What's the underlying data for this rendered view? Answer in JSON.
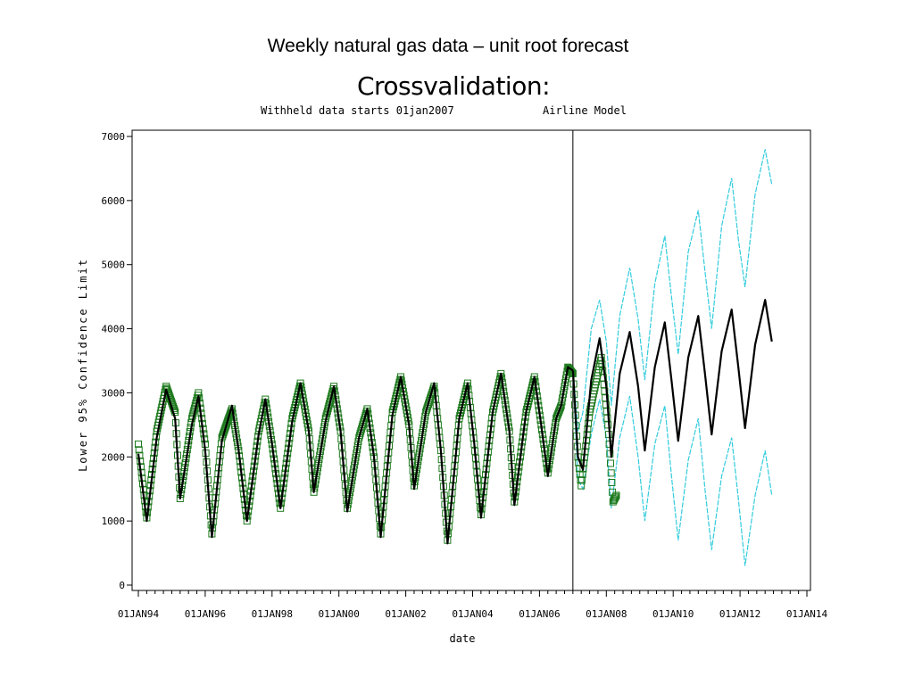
{
  "slide": {
    "title": "Weekly natural gas data – unit root forecast"
  },
  "chart_data": {
    "type": "line",
    "title": "Crossvalidation:",
    "subtitle_left": "Withheld data starts 01jan2007",
    "subtitle_right": "Airline Model",
    "xlabel": "date",
    "ylabel": "Lower 95% Confidence Limit",
    "xlim": [
      1994.0,
      2014.0
    ],
    "ylim": [
      0,
      7000
    ],
    "yticks": [
      0,
      1000,
      2000,
      3000,
      4000,
      5000,
      6000,
      7000
    ],
    "xticks": [
      {
        "value": 1994,
        "label": "01JAN94"
      },
      {
        "value": 1996,
        "label": "01JAN96"
      },
      {
        "value": 1998,
        "label": "01JAN98"
      },
      {
        "value": 2000,
        "label": "01JAN00"
      },
      {
        "value": 2002,
        "label": "01JAN02"
      },
      {
        "value": 2004,
        "label": "01JAN04"
      },
      {
        "value": 2006,
        "label": "01JAN06"
      },
      {
        "value": 2008,
        "label": "01JAN08"
      },
      {
        "value": 2010,
        "label": "01JAN10"
      },
      {
        "value": 2012,
        "label": "01JAN12"
      },
      {
        "value": 2014,
        "label": "01JAN14"
      }
    ],
    "reference_line_x": 2007.0,
    "colors": {
      "actual": "#1e7a1e",
      "fitted": "#000000",
      "forecast": "#000000",
      "confidence": "#33ccdd"
    },
    "series": [
      {
        "key": "actual",
        "style": "open-square-markers",
        "points": [
          [
            1994.0,
            2200
          ],
          [
            1994.25,
            1050
          ],
          [
            1994.55,
            2400
          ],
          [
            1994.83,
            3100
          ],
          [
            1995.1,
            2700
          ],
          [
            1995.25,
            1350
          ],
          [
            1995.6,
            2600
          ],
          [
            1995.8,
            3000
          ],
          [
            1996.0,
            2200
          ],
          [
            1996.2,
            800
          ],
          [
            1996.5,
            2300
          ],
          [
            1996.8,
            2750
          ],
          [
            1997.0,
            2100
          ],
          [
            1997.25,
            1000
          ],
          [
            1997.6,
            2400
          ],
          [
            1997.8,
            2900
          ],
          [
            1998.0,
            2200
          ],
          [
            1998.25,
            1200
          ],
          [
            1998.6,
            2600
          ],
          [
            1998.85,
            3150
          ],
          [
            1999.1,
            2400
          ],
          [
            1999.25,
            1450
          ],
          [
            1999.6,
            2600
          ],
          [
            1999.85,
            3100
          ],
          [
            2000.05,
            2400
          ],
          [
            2000.25,
            1200
          ],
          [
            2000.6,
            2300
          ],
          [
            2000.85,
            2750
          ],
          [
            2001.05,
            2000
          ],
          [
            2001.25,
            800
          ],
          [
            2001.6,
            2700
          ],
          [
            2001.85,
            3250
          ],
          [
            2002.1,
            2500
          ],
          [
            2002.25,
            1550
          ],
          [
            2002.6,
            2700
          ],
          [
            2002.85,
            3100
          ],
          [
            2003.05,
            2100
          ],
          [
            2003.25,
            700
          ],
          [
            2003.6,
            2600
          ],
          [
            2003.85,
            3150
          ],
          [
            2004.05,
            2200
          ],
          [
            2004.25,
            1100
          ],
          [
            2004.6,
            2700
          ],
          [
            2004.85,
            3300
          ],
          [
            2005.1,
            2400
          ],
          [
            2005.25,
            1300
          ],
          [
            2005.6,
            2700
          ],
          [
            2005.85,
            3250
          ],
          [
            2006.05,
            2500
          ],
          [
            2006.25,
            1750
          ],
          [
            2006.5,
            2600
          ],
          [
            2006.65,
            2800
          ],
          [
            2006.85,
            3400
          ],
          [
            2007.0,
            3300
          ],
          [
            2007.15,
            2000
          ],
          [
            2007.25,
            1550
          ],
          [
            2007.5,
            2700
          ],
          [
            2007.85,
            3550
          ],
          [
            2008.05,
            2500
          ],
          [
            2008.2,
            1300
          ],
          [
            2008.3,
            1400
          ]
        ]
      },
      {
        "key": "fitted",
        "style": "solid-line",
        "points": [
          [
            1994.0,
            2050
          ],
          [
            1994.25,
            1000
          ],
          [
            1994.55,
            2300
          ],
          [
            1994.83,
            3050
          ],
          [
            1995.1,
            2600
          ],
          [
            1995.25,
            1350
          ],
          [
            1995.6,
            2500
          ],
          [
            1995.8,
            2950
          ],
          [
            1996.0,
            2100
          ],
          [
            1996.2,
            750
          ],
          [
            1996.5,
            2250
          ],
          [
            1996.8,
            2800
          ],
          [
            1997.0,
            2100
          ],
          [
            1997.25,
            1000
          ],
          [
            1997.6,
            2350
          ],
          [
            1997.8,
            2900
          ],
          [
            1998.0,
            2200
          ],
          [
            1998.25,
            1200
          ],
          [
            1998.6,
            2550
          ],
          [
            1998.85,
            3150
          ],
          [
            1999.1,
            2400
          ],
          [
            1999.25,
            1450
          ],
          [
            1999.6,
            2550
          ],
          [
            1999.85,
            3100
          ],
          [
            2000.05,
            2400
          ],
          [
            2000.25,
            1150
          ],
          [
            2000.6,
            2300
          ],
          [
            2000.85,
            2750
          ],
          [
            2001.05,
            2000
          ],
          [
            2001.25,
            750
          ],
          [
            2001.6,
            2650
          ],
          [
            2001.85,
            3250
          ],
          [
            2002.1,
            2500
          ],
          [
            2002.25,
            1500
          ],
          [
            2002.6,
            2700
          ],
          [
            2002.85,
            3150
          ],
          [
            2003.05,
            2100
          ],
          [
            2003.25,
            650
          ],
          [
            2003.6,
            2600
          ],
          [
            2003.85,
            3150
          ],
          [
            2004.05,
            2200
          ],
          [
            2004.25,
            1050
          ],
          [
            2004.6,
            2700
          ],
          [
            2004.85,
            3300
          ],
          [
            2005.1,
            2400
          ],
          [
            2005.25,
            1250
          ],
          [
            2005.6,
            2700
          ],
          [
            2005.85,
            3250
          ],
          [
            2006.05,
            2500
          ],
          [
            2006.25,
            1700
          ],
          [
            2006.5,
            2600
          ],
          [
            2006.65,
            2800
          ],
          [
            2006.85,
            3400
          ],
          [
            2007.0,
            3350
          ]
        ]
      },
      {
        "key": "forecast",
        "style": "solid-line",
        "points": [
          [
            2007.0,
            3350
          ],
          [
            2007.15,
            2000
          ],
          [
            2007.3,
            1800
          ],
          [
            2007.55,
            3200
          ],
          [
            2007.8,
            3850
          ],
          [
            2008.0,
            3100
          ],
          [
            2008.15,
            2000
          ],
          [
            2008.4,
            3300
          ],
          [
            2008.7,
            3950
          ],
          [
            2008.95,
            3100
          ],
          [
            2009.15,
            2100
          ],
          [
            2009.45,
            3400
          ],
          [
            2009.75,
            4100
          ],
          [
            2009.95,
            3200
          ],
          [
            2010.15,
            2250
          ],
          [
            2010.45,
            3550
          ],
          [
            2010.75,
            4200
          ],
          [
            2010.95,
            3300
          ],
          [
            2011.15,
            2350
          ],
          [
            2011.45,
            3650
          ],
          [
            2011.75,
            4300
          ],
          [
            2011.95,
            3400
          ],
          [
            2012.15,
            2450
          ],
          [
            2012.45,
            3750
          ],
          [
            2012.75,
            4450
          ],
          [
            2012.95,
            3800
          ]
        ]
      },
      {
        "key": "upper",
        "style": "thin-line",
        "points": [
          [
            2007.0,
            3400
          ],
          [
            2007.15,
            2400
          ],
          [
            2007.3,
            2700
          ],
          [
            2007.55,
            4000
          ],
          [
            2007.8,
            4450
          ],
          [
            2008.0,
            3800
          ],
          [
            2008.15,
            2800
          ],
          [
            2008.4,
            4200
          ],
          [
            2008.7,
            4950
          ],
          [
            2008.95,
            4150
          ],
          [
            2009.15,
            3200
          ],
          [
            2009.45,
            4700
          ],
          [
            2009.75,
            5450
          ],
          [
            2009.95,
            4500
          ],
          [
            2010.15,
            3600
          ],
          [
            2010.45,
            5200
          ],
          [
            2010.75,
            5850
          ],
          [
            2010.95,
            4900
          ],
          [
            2011.15,
            4000
          ],
          [
            2011.45,
            5600
          ],
          [
            2011.75,
            6350
          ],
          [
            2011.95,
            5400
          ],
          [
            2012.15,
            4650
          ],
          [
            2012.45,
            6100
          ],
          [
            2012.75,
            6800
          ],
          [
            2012.95,
            6250
          ]
        ]
      },
      {
        "key": "lower",
        "style": "thin-line",
        "points": [
          [
            2007.0,
            3300
          ],
          [
            2007.15,
            1650
          ],
          [
            2007.3,
            1500
          ],
          [
            2007.55,
            2350
          ],
          [
            2007.8,
            2900
          ],
          [
            2008.0,
            2300
          ],
          [
            2008.15,
            1200
          ],
          [
            2008.4,
            2300
          ],
          [
            2008.7,
            2950
          ],
          [
            2008.95,
            2000
          ],
          [
            2009.15,
            1000
          ],
          [
            2009.45,
            2200
          ],
          [
            2009.75,
            2800
          ],
          [
            2009.95,
            1700
          ],
          [
            2010.15,
            700
          ],
          [
            2010.45,
            1950
          ],
          [
            2010.75,
            2600
          ],
          [
            2010.95,
            1500
          ],
          [
            2011.15,
            550
          ],
          [
            2011.45,
            1700
          ],
          [
            2011.75,
            2300
          ],
          [
            2011.95,
            1350
          ],
          [
            2012.15,
            300
          ],
          [
            2012.45,
            1400
          ],
          [
            2012.75,
            2100
          ],
          [
            2012.95,
            1400
          ]
        ]
      }
    ]
  }
}
